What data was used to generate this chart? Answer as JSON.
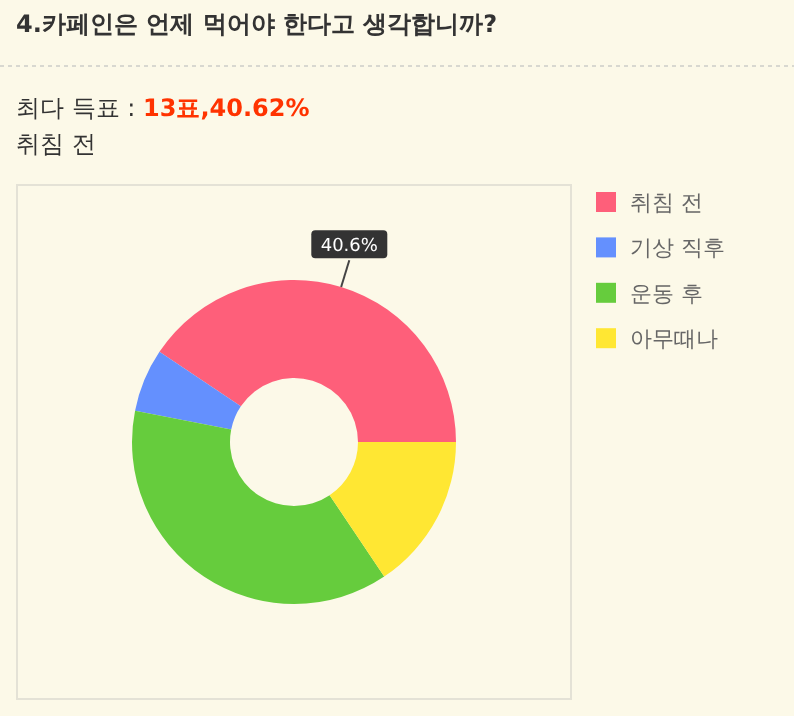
{
  "chart_data": {
    "type": "donut",
    "title": "4.카페인은 언제 먹어야 한다고 생각합니까?",
    "subtitle": "최다 득표 : 13표,40.62%",
    "annotations": [
      "취침 전"
    ],
    "categories": [
      "취침 전",
      "기상 직후",
      "운동 후",
      "아무때나"
    ],
    "values": [
      40.6,
      6.3,
      37.5,
      15.6
    ],
    "colors": [
      "#fe5f7a",
      "#6490fe",
      "#66cc3d",
      "#ffe733"
    ],
    "value_labels": [
      "40.6%",
      null,
      null,
      null
    ],
    "legend": "right"
  }
}
